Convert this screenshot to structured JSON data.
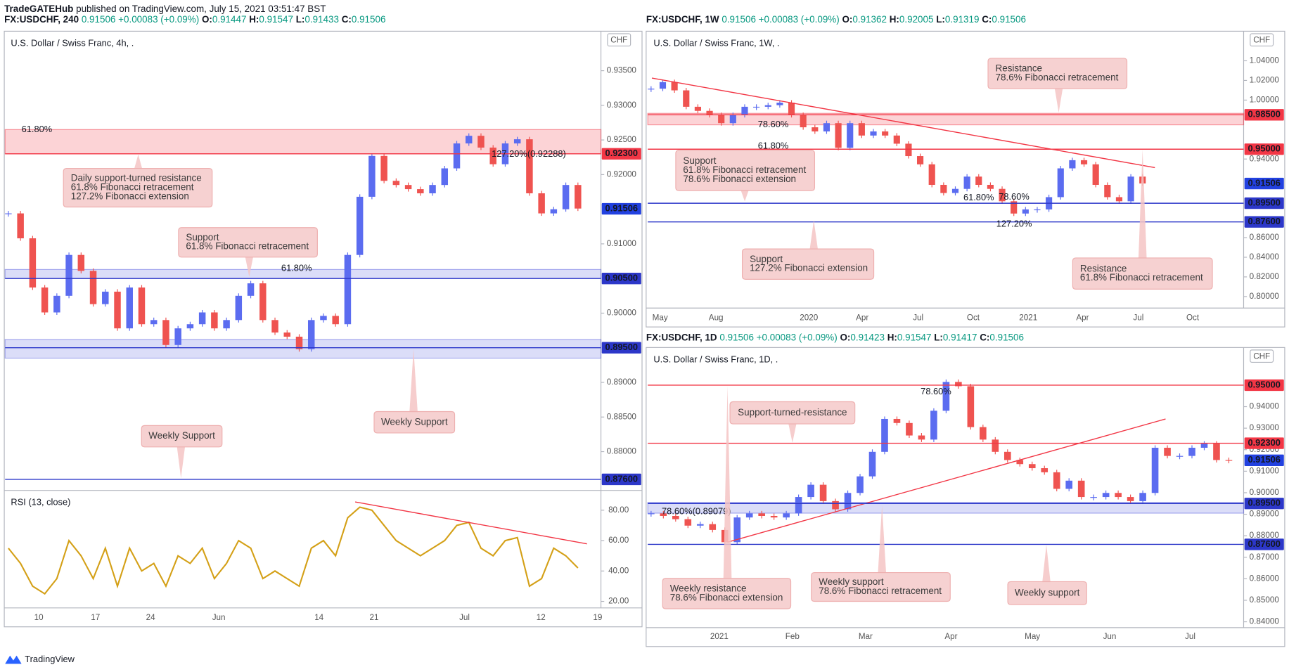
{
  "page": {
    "publisher": "TradeGATEHub",
    "published": "published on TradingView.com, July 15, 2021 03:51:47 BST",
    "footer": "TradingView"
  },
  "chart_data": [
    {
      "type": "candlestick",
      "header": {
        "symbol": "FX:USDCHF, 240",
        "price": "0.91506",
        "change": "+0.00083 (+0.09%)",
        "ohlc": [
          {
            "label": "O:",
            "value": "0.91447"
          },
          {
            "label": "H:",
            "value": "0.91547"
          },
          {
            "label": "L:",
            "value": "0.91433"
          },
          {
            "label": "C:",
            "value": "0.91506"
          }
        ]
      },
      "title": "U.S. Dollar / Swiss Franc, 4h, .",
      "currency": "CHF",
      "ylim": [
        0.8744,
        0.9407
      ],
      "yticks": [
        {
          "value": 0.88,
          "label": "0.88000"
        },
        {
          "value": 0.885,
          "label": "0.88500"
        },
        {
          "value": 0.89,
          "label": "0.89000"
        },
        {
          "value": 0.9,
          "label": "0.90000"
        },
        {
          "value": 0.91,
          "label": "0.91000"
        },
        {
          "value": 0.92,
          "label": "0.92000"
        },
        {
          "value": 0.925,
          "label": "0.92500"
        },
        {
          "value": 0.93,
          "label": "0.93000"
        },
        {
          "value": 0.935,
          "label": "0.93500"
        }
      ],
      "x_labels": [
        "10",
        "17",
        "24",
        "Jun",
        "14",
        "21",
        "Jul",
        "12",
        "19"
      ],
      "up_color": "#5b6cf0",
      "down_color": "#ef5350",
      "values": [
        0.9144,
        0.9108,
        0.9037,
        0.9001,
        0.9025,
        0.9084,
        0.9061,
        0.9013,
        0.9031,
        0.8978,
        0.9037,
        0.8984,
        0.899,
        0.8954,
        0.8978,
        0.8984,
        0.9001,
        0.8978,
        0.899,
        0.9025,
        0.9043,
        0.899,
        0.8972,
        0.8966,
        0.8948,
        0.899,
        0.8996,
        0.8984,
        0.9084,
        0.9168,
        0.9227,
        0.9191,
        0.9185,
        0.9179,
        0.9173,
        0.9185,
        0.9209,
        0.9245,
        0.9256,
        0.9239,
        0.9215,
        0.9245,
        0.9251,
        0.9173,
        0.9144,
        0.915,
        0.9185,
        0.9151
      ],
      "levels": [
        {
          "value": 0.923,
          "label": "0.92300",
          "color": "#f23645",
          "line": true
        },
        {
          "value": 0.91506,
          "label": "0.91506",
          "color": "#2241e0",
          "line": false
        },
        {
          "value": 0.905,
          "label": "0.90500",
          "color": "#2c37c9",
          "line": true
        },
        {
          "value": 0.895,
          "label": "0.89500",
          "color": "#2c37c9",
          "line": true
        },
        {
          "value": 0.876,
          "label": "0.87600",
          "color": "#2c37c9",
          "line": true
        }
      ],
      "zones": [
        {
          "range": [
            0.923,
            0.9265
          ],
          "color": "#f23645"
        },
        {
          "range": [
            0.905,
            0.9063
          ],
          "color": "#5b62e0"
        },
        {
          "range": [
            0.8935,
            0.8962
          ],
          "color": "#5b62e0"
        }
      ],
      "annotations": [
        [
          "Daily support-turned resistance",
          "61.8% Fibonacci retracement",
          "127.2% Fibonacci extension"
        ],
        [
          "Support",
          "61.8% Fibonacci retracement"
        ],
        [
          "Weekly Support"
        ],
        [
          "Weekly Support"
        ]
      ],
      "fib_labels": [
        {
          "text": "61.80%",
          "color": "#c8901a"
        },
        {
          "text": "61.80%",
          "color": "#c8901a"
        },
        {
          "text": "127.20%(0.92288)",
          "color": "#2c37c9"
        }
      ],
      "indicator": {
        "title": "RSI (13, close)",
        "ylim": [
          15.7,
          93
        ],
        "yticks": [
          {
            "value": 20,
            "label": "20.00"
          },
          {
            "value": 40,
            "label": "40.00"
          },
          {
            "value": 60,
            "label": "60.00"
          },
          {
            "value": 80,
            "label": "80.00"
          }
        ],
        "color": "#d4a017",
        "values": [
          55,
          45,
          30,
          25,
          35,
          60,
          50,
          35,
          55,
          30,
          55,
          40,
          45,
          30,
          50,
          45,
          55,
          35,
          45,
          60,
          55,
          35,
          40,
          35,
          30,
          55,
          60,
          50,
          75,
          82,
          80,
          70,
          60,
          55,
          50,
          55,
          60,
          70,
          72,
          55,
          50,
          60,
          62,
          30,
          35,
          55,
          50,
          42
        ]
      }
    },
    {
      "type": "candlestick",
      "header": {
        "symbol": "FX:USDCHF, 1W",
        "price": "0.91506",
        "change": "+0.00083 (+0.09%)",
        "ohlc": [
          {
            "label": "O:",
            "value": "0.91362"
          },
          {
            "label": "H:",
            "value": "0.92005"
          },
          {
            "label": "L:",
            "value": "0.91319"
          },
          {
            "label": "C:",
            "value": "0.91506"
          }
        ]
      },
      "title": "U.S. Dollar / Swiss Franc, 1W, .",
      "currency": "CHF",
      "ylim": [
        0.7866,
        1.0701
      ],
      "yticks": [
        {
          "value": 0.8,
          "label": "0.80000"
        },
        {
          "value": 0.82,
          "label": "0.82000"
        },
        {
          "value": 0.84,
          "label": "0.84000"
        },
        {
          "value": 0.86,
          "label": "0.86000"
        },
        {
          "value": 0.94,
          "label": "0.94000"
        },
        {
          "value": 1,
          "label": "1.00000"
        },
        {
          "value": 1.02,
          "label": "1.02000"
        },
        {
          "value": 1.04,
          "label": "1.04000"
        }
      ],
      "x_labels": [
        "May",
        "Aug",
        "2020",
        "Apr",
        "Jul",
        "Oct",
        "2021",
        "Apr",
        "Jul",
        "Oct"
      ],
      "up_color": "#5b6cf0",
      "down_color": "#ef5350",
      "values": [
        1.0116,
        1.0183,
        1.0099,
        0.9932,
        0.989,
        0.9848,
        0.9765,
        0.9848,
        0.9932,
        0.9932,
        0.9948,
        0.9974,
        0.9848,
        0.9723,
        0.9681,
        0.9765,
        0.9514,
        0.9765,
        0.9639,
        0.9681,
        0.9639,
        0.9556,
        0.943,
        0.9346,
        0.9137,
        0.9054,
        0.9096,
        0.9221,
        0.9137,
        0.9096,
        0.897,
        0.8845,
        0.8887,
        0.8887,
        0.9012,
        0.9305,
        0.9388,
        0.9346,
        0.9137,
        0.9012,
        0.897,
        0.9221,
        0.9151
      ],
      "levels": [
        {
          "value": 0.985,
          "label": "0.98500",
          "color": "#f23645",
          "line": true
        },
        {
          "value": 0.95,
          "label": "0.95000",
          "color": "#f23645",
          "line": true
        },
        {
          "value": 0.91506,
          "label": "0.91506",
          "color": "#2241e0",
          "line": false
        },
        {
          "value": 0.895,
          "label": "0.89500",
          "color": "#2c37c9",
          "line": true
        },
        {
          "value": 0.876,
          "label": "0.87600",
          "color": "#2c37c9",
          "line": true
        }
      ],
      "zones": [
        {
          "range": [
            0.9748,
            0.9865
          ],
          "color": "#f23645"
        }
      ],
      "annotations": [
        [
          "Resistance",
          "78.6% Fibonacci retracement"
        ],
        [
          "Support",
          "61.8% Fibonacci retracement",
          "78.6% Fibonacci extension"
        ],
        [
          "Support",
          "127.2% Fibonacci extension"
        ],
        [
          "Resistance",
          "61.8% Fibonacci retracement"
        ]
      ],
      "fib_labels": [
        {
          "text": "78.60%",
          "color": "#2c37c9"
        },
        {
          "text": "61.80%",
          "color": "#c8901a"
        },
        {
          "text": "61.80%",
          "color": "#c8901a"
        },
        {
          "text": "78.60%",
          "color": "#2c37c9"
        },
        {
          "text": "127.20%",
          "color": "#2c37c9"
        }
      ]
    },
    {
      "type": "candlestick",
      "header": {
        "symbol": "FX:USDCHF, 1D",
        "price": "0.91506",
        "change": "+0.00083 (+0.09%)",
        "ohlc": [
          {
            "label": "O:",
            "value": "0.91423"
          },
          {
            "label": "H:",
            "value": "0.91547"
          },
          {
            "label": "L:",
            "value": "0.91417"
          },
          {
            "label": "C:",
            "value": "0.91506"
          }
        ]
      },
      "title": "U.S. Dollar / Swiss Franc, 1D, .",
      "currency": "CHF",
      "ylim": [
        0.8369,
        0.9675
      ],
      "yticks": [
        {
          "value": 0.84,
          "label": "0.84000"
        },
        {
          "value": 0.85,
          "label": "0.85000"
        },
        {
          "value": 0.86,
          "label": "0.86000"
        },
        {
          "value": 0.87,
          "label": "0.87000"
        },
        {
          "value": 0.88,
          "label": "0.88000"
        },
        {
          "value": 0.89,
          "label": "0.89000"
        },
        {
          "value": 0.9,
          "label": "0.90000"
        },
        {
          "value": 0.91,
          "label": "0.91000"
        },
        {
          "value": 0.92,
          "label": "0.92000"
        },
        {
          "value": 0.93,
          "label": "0.93000"
        },
        {
          "value": 0.94,
          "label": "0.94000"
        }
      ],
      "x_labels": [
        "2021",
        "Feb",
        "Mar",
        "Apr",
        "May",
        "Jun",
        "Jul"
      ],
      "up_color": "#5b6cf0",
      "down_color": "#ef5350",
      "values": [
        0.8904,
        0.8892,
        0.8877,
        0.8847,
        0.8854,
        0.8827,
        0.877,
        0.8885,
        0.8904,
        0.8892,
        0.8885,
        0.8904,
        0.898,
        0.9037,
        0.8961,
        0.8923,
        0.8999,
        0.9076,
        0.919,
        0.9343,
        0.9324,
        0.9266,
        0.9247,
        0.9381,
        0.9515,
        0.9495,
        0.9305,
        0.9247,
        0.919,
        0.9152,
        0.9133,
        0.9114,
        0.9095,
        0.9018,
        0.9056,
        0.898,
        0.898,
        0.8999,
        0.898,
        0.8961,
        0.8999,
        0.9209,
        0.9171,
        0.9171,
        0.9209,
        0.9228,
        0.9152,
        0.9151
      ],
      "levels": [
        {
          "value": 0.95,
          "label": "0.95000",
          "color": "#f23645",
          "line": true
        },
        {
          "value": 0.923,
          "label": "0.92300",
          "color": "#f23645",
          "line": true
        },
        {
          "value": 0.91506,
          "label": "0.91506",
          "color": "#2241e0",
          "line": false
        },
        {
          "value": 0.895,
          "label": "0.89500",
          "color": "#2c37c9",
          "line": true
        },
        {
          "value": 0.876,
          "label": "0.87600",
          "color": "#2c37c9",
          "line": true
        }
      ],
      "zones": [
        {
          "range": [
            0.8905,
            0.8955
          ],
          "color": "#5b62e0"
        }
      ],
      "annotations": [
        [
          "Support-turned-resistance"
        ],
        [
          "Weekly resistance",
          "78.6% Fibonacci extension"
        ],
        [
          "Weekly support",
          "78.6% Fibonacci retracement"
        ],
        [
          "Weekly support"
        ]
      ],
      "fib_labels": [
        {
          "text": "78.60%",
          "color": "#2c37c9"
        },
        {
          "text": "78.60%(0.89079)",
          "color": "#2c37c9"
        }
      ]
    }
  ]
}
